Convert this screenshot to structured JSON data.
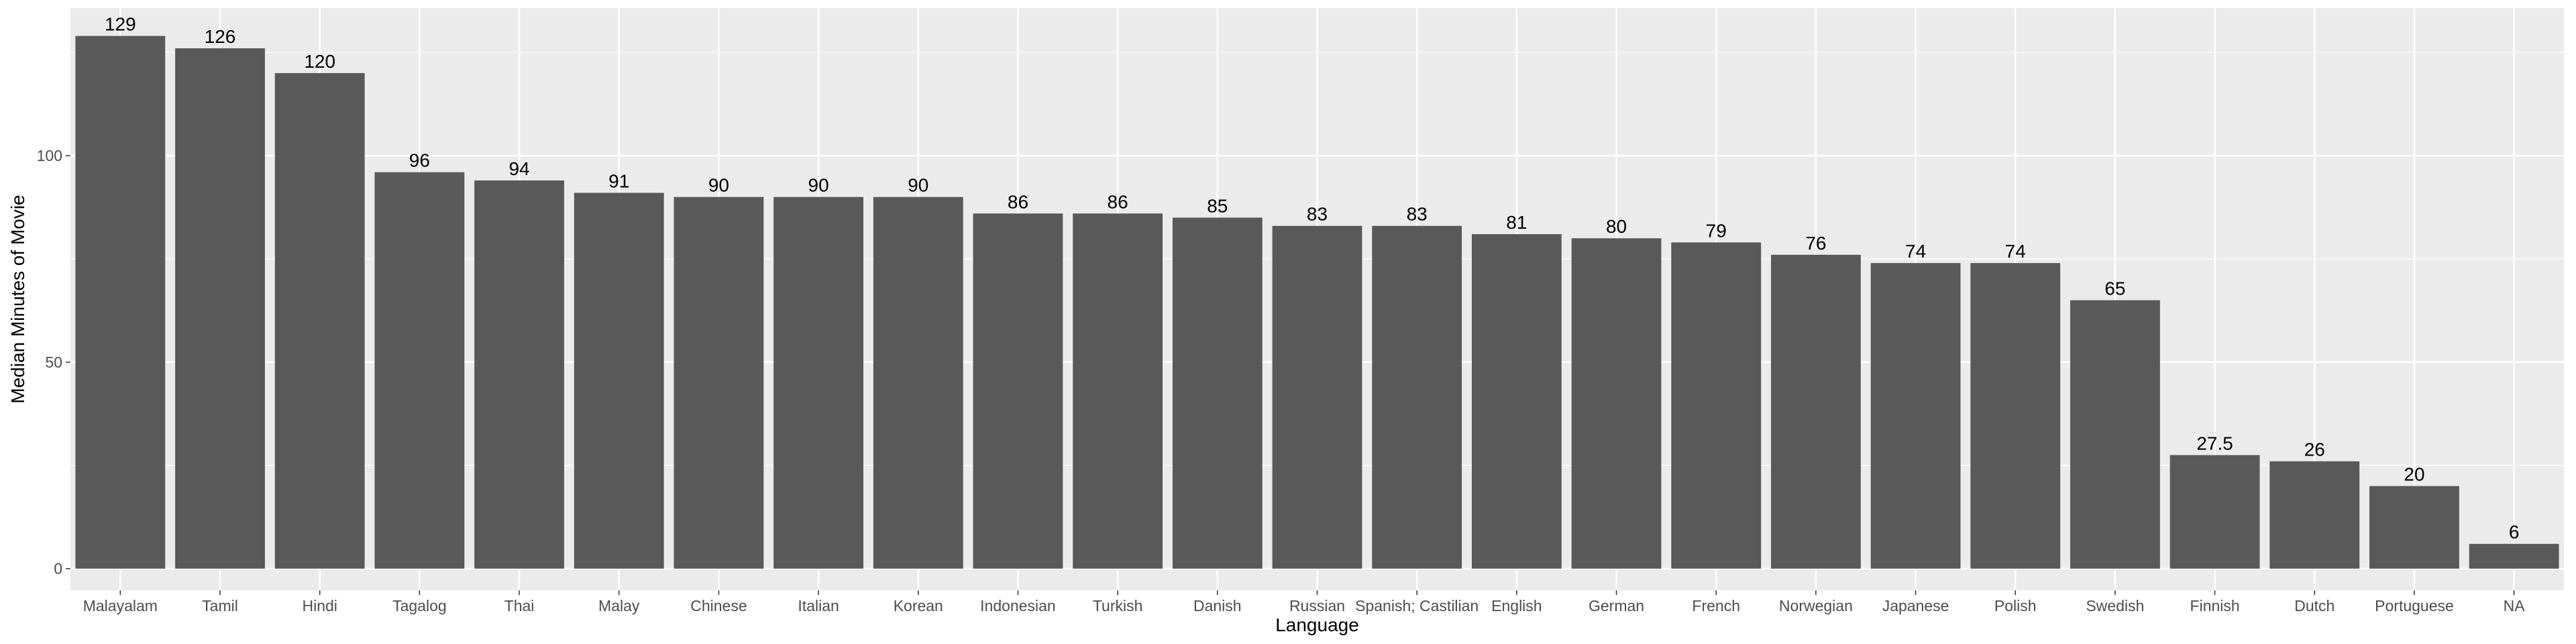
{
  "chart_data": {
    "type": "bar",
    "title": "",
    "xlabel": "Language",
    "ylabel": "Median Minutes of Movie",
    "categories": [
      "Malayalam",
      "Tamil",
      "Hindi",
      "Tagalog",
      "Thai",
      "Malay",
      "Chinese",
      "Italian",
      "Korean",
      "Indonesian",
      "Turkish",
      "Danish",
      "Russian",
      "Spanish; Castilian",
      "English",
      "German",
      "French",
      "Norwegian",
      "Japanese",
      "Polish",
      "Swedish",
      "Finnish",
      "Dutch",
      "Portuguese",
      "NA"
    ],
    "values": [
      129,
      126,
      120,
      96,
      94,
      91,
      90,
      90,
      90,
      86,
      86,
      85,
      83,
      83,
      81,
      80,
      79,
      76,
      74,
      74,
      65,
      27.5,
      26,
      20,
      6
    ],
    "labels": [
      "129",
      "126",
      "120",
      "96",
      "94",
      "91",
      "90",
      "90",
      "90",
      "86",
      "86",
      "85",
      "83",
      "83",
      "81",
      "80",
      "79",
      "76",
      "74",
      "74",
      "65",
      "27.5",
      "26",
      "20",
      "6"
    ],
    "ylim": [
      -5.25,
      135.75
    ],
    "yticks": [
      0,
      50,
      100
    ],
    "ytick_labels": [
      "0",
      "50",
      "100"
    ],
    "grid": true,
    "colors": {
      "panel": "#ebebeb",
      "grid_major": "#ffffff",
      "bar": "#595959",
      "tick": "#333333"
    }
  }
}
